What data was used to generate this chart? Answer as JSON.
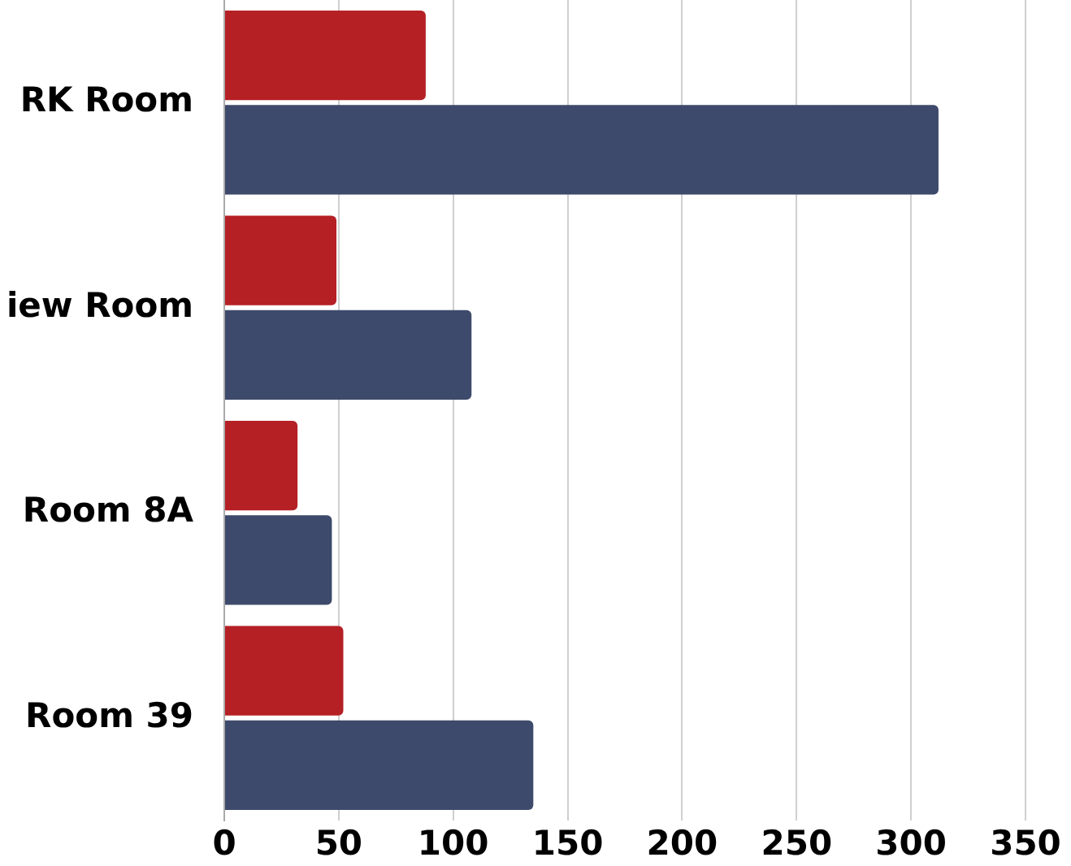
{
  "chart_data": {
    "type": "bar",
    "orientation": "horizontal",
    "categories": [
      "RK Room",
      "iew Room",
      "Room 8A",
      "Room 39"
    ],
    "series": [
      {
        "color": "#b52025",
        "values": [
          88,
          49,
          32,
          52
        ]
      },
      {
        "color": "#3e4a6b",
        "values": [
          312,
          108,
          47,
          135
        ]
      }
    ],
    "xlim": [
      0,
      350
    ],
    "xticks": [
      0,
      50,
      100,
      150,
      200,
      250,
      300,
      350
    ],
    "grid": "x",
    "legend": false
  }
}
